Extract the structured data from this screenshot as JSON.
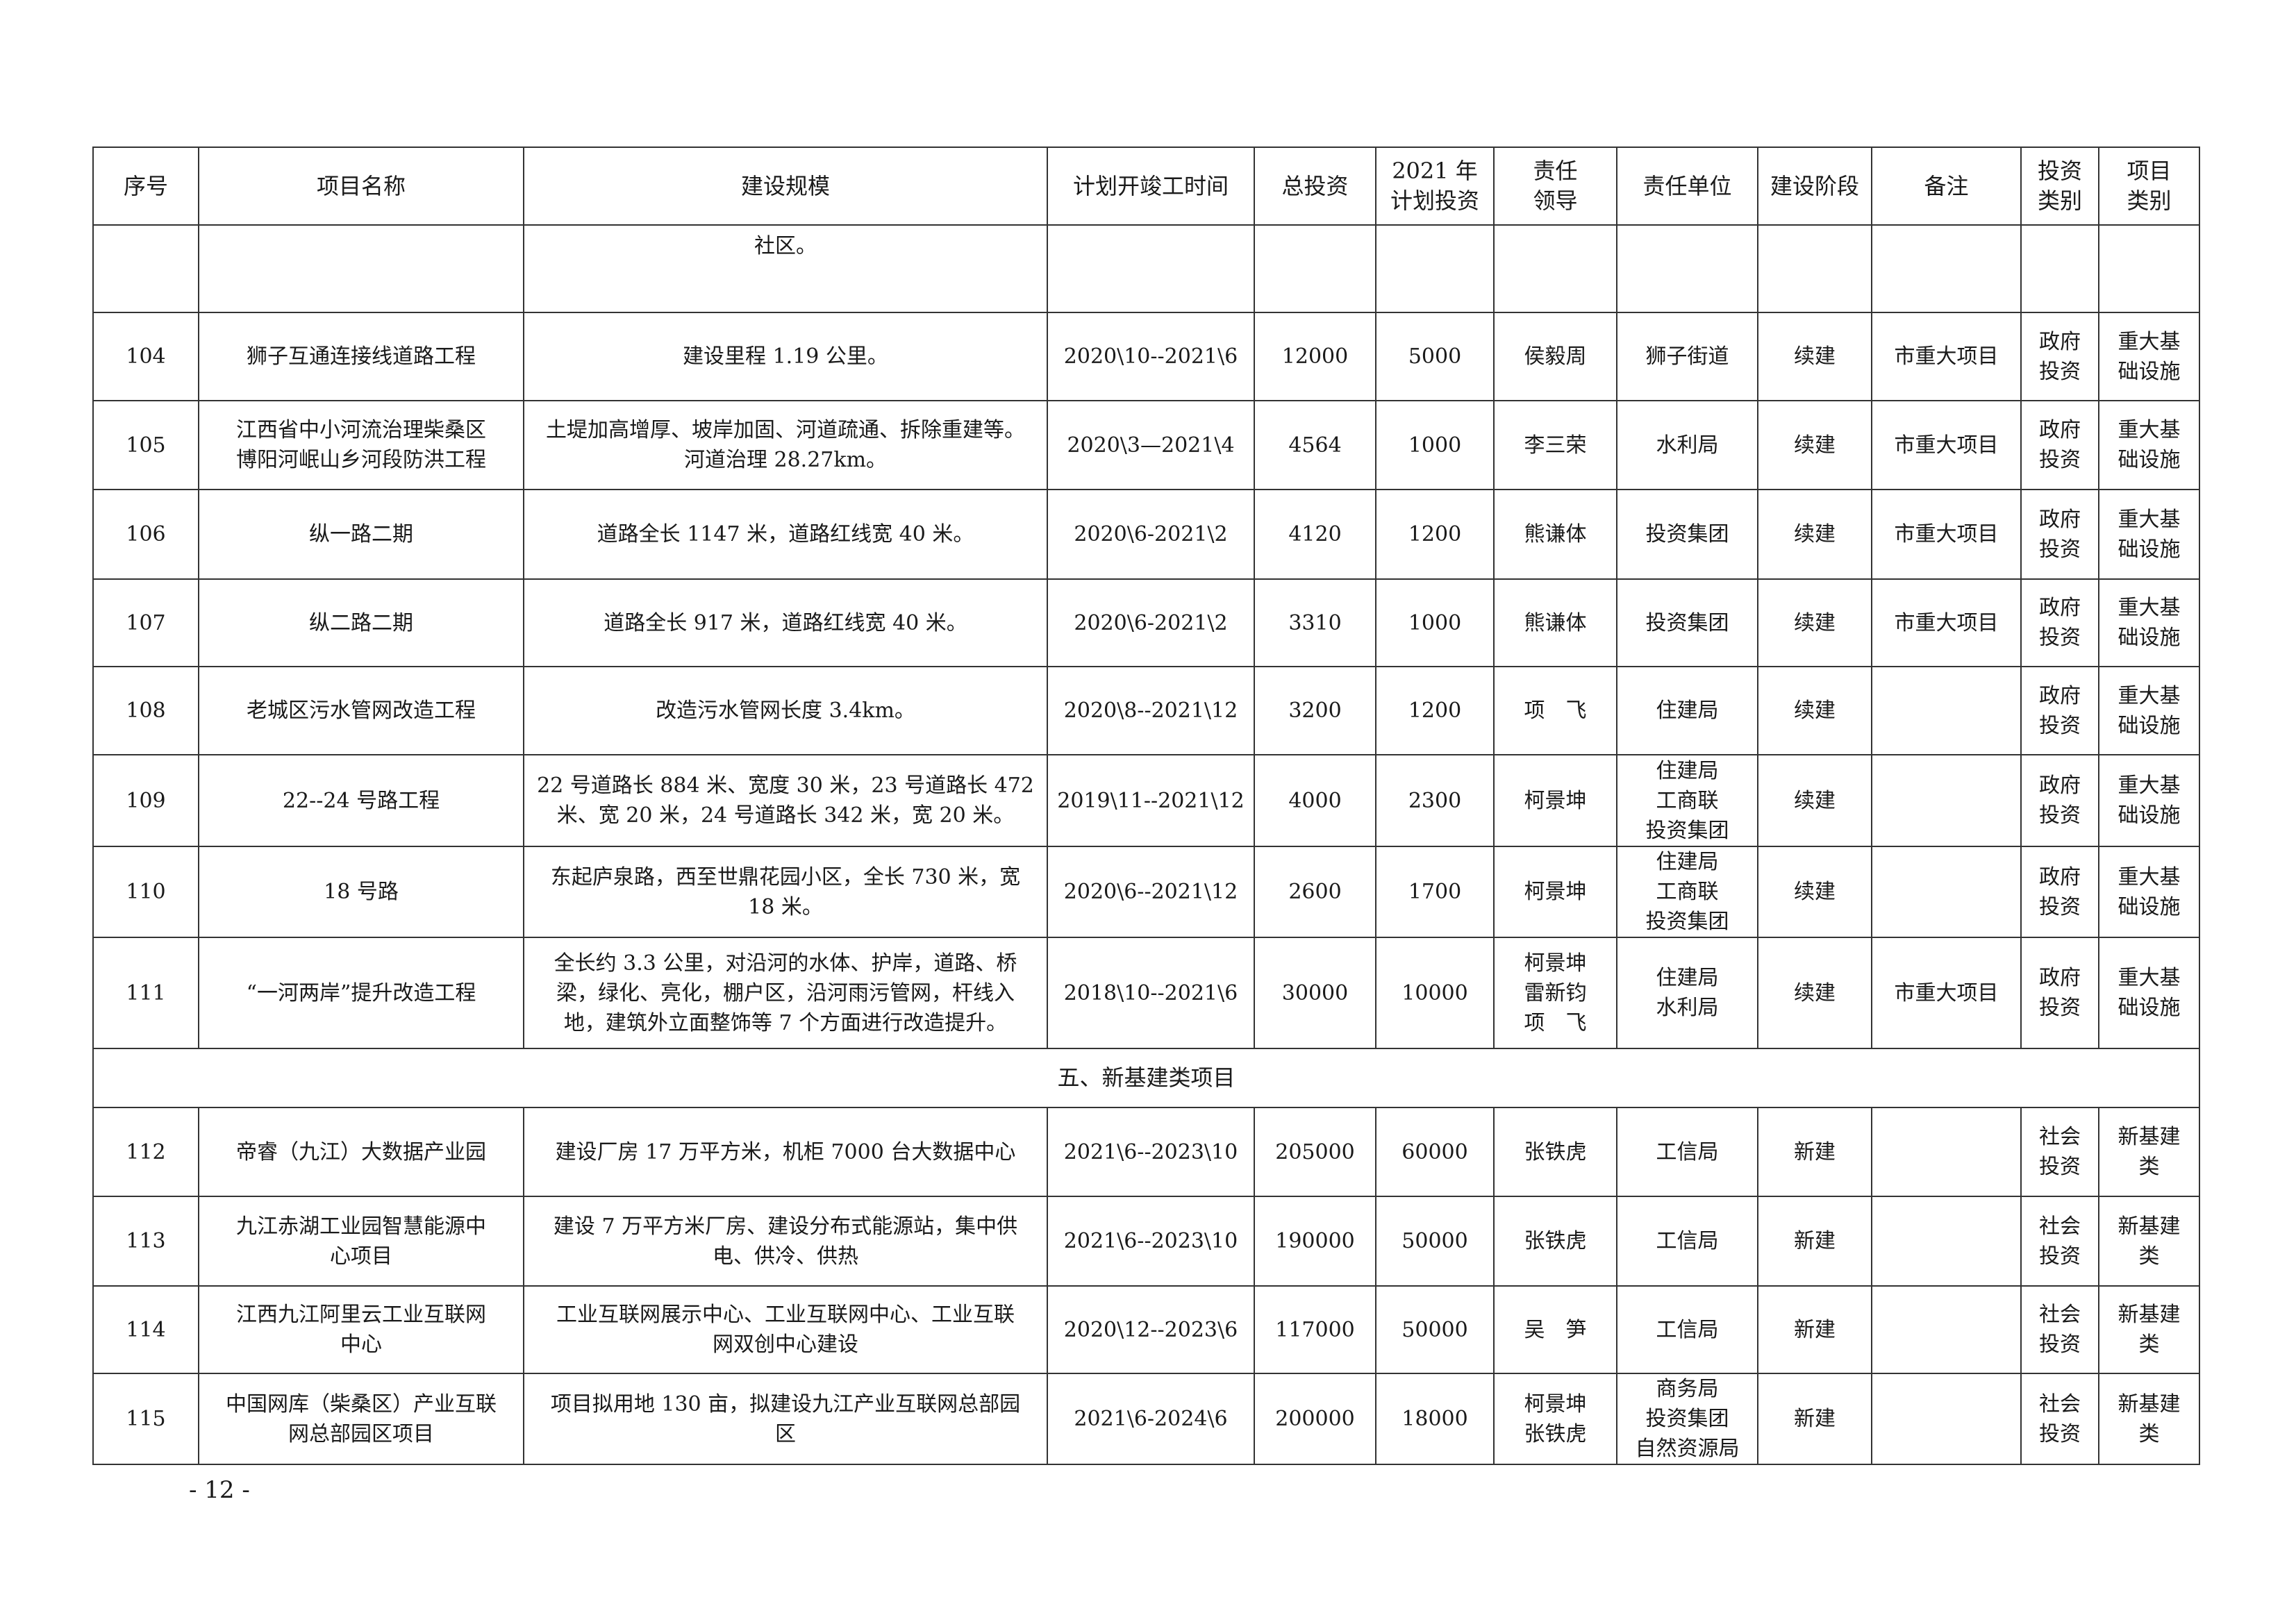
{
  "table": {
    "headers": [
      "序号",
      "项目名称",
      "建设规模",
      "计划开竣工时间",
      "总投资",
      "2021 年\n计划投资",
      "责任\n领导",
      "责任单位",
      "建设阶段",
      "备注",
      "投资\n类别",
      "项目\n类别"
    ],
    "continuation_row": {
      "scale": "社区。"
    },
    "rows_part1": [
      [
        "104",
        "狮子互通连接线道路工程",
        "建设里程 1.19 公里。",
        "2020\\10--2021\\6",
        "12000",
        "5000",
        "侯毅周",
        "狮子街道",
        "续建",
        "市重大项目",
        "政府\n投资",
        "重大基\n础设施"
      ],
      [
        "105",
        "江西省中小河流治理柴桑区\n博阳河岷山乡河段防洪工程",
        "土堤加高增厚、坡岸加固、河道疏通、拆除重建等。\n河道治理 28.27km。",
        "2020\\3—2021\\4",
        "4564",
        "1000",
        "李三荣",
        "水利局",
        "续建",
        "市重大项目",
        "政府\n投资",
        "重大基\n础设施"
      ],
      [
        "106",
        "纵一路二期",
        "道路全长 1147 米，道路红线宽 40 米。",
        "2020\\6-2021\\2",
        "4120",
        "1200",
        "熊谦体",
        "投资集团",
        "续建",
        "市重大项目",
        "政府\n投资",
        "重大基\n础设施"
      ],
      [
        "107",
        "纵二路二期",
        "道路全长 917 米，道路红线宽 40 米。",
        "2020\\6-2021\\2",
        "3310",
        "1000",
        "熊谦体",
        "投资集团",
        "续建",
        "市重大项目",
        "政府\n投资",
        "重大基\n础设施"
      ],
      [
        "108",
        "老城区污水管网改造工程",
        "改造污水管网长度 3.4km。",
        "2020\\8--2021\\12",
        "3200",
        "1200",
        "项　飞",
        "住建局",
        "续建",
        "",
        "政府\n投资",
        "重大基\n础设施"
      ],
      [
        "109",
        "22--24 号路工程",
        "22 号道路长 884 米、宽度 30 米，23 号道路长 472\n米、宽 20 米，24 号道路长 342 米，宽 20 米。",
        "2019\\11--2021\\12",
        "4000",
        "2300",
        "柯景坤",
        "住建局\n工商联\n投资集团",
        "续建",
        "",
        "政府\n投资",
        "重大基\n础设施"
      ],
      [
        "110",
        "18 号路",
        "东起庐泉路，西至世鼎花园小区，全长 730 米，宽\n18 米。",
        "2020\\6--2021\\12",
        "2600",
        "1700",
        "柯景坤",
        "住建局\n工商联\n投资集团",
        "续建",
        "",
        "政府\n投资",
        "重大基\n础设施"
      ],
      [
        "111",
        "“一河两岸”提升改造工程",
        "全长约 3.3 公里，对沿河的水体、护岸，道路、桥\n梁，绿化、亮化，棚户区，沿河雨污管网，杆线入\n地，建筑外立面整饰等 7 个方面进行改造提升。",
        "2018\\10--2021\\6",
        "30000",
        "10000",
        "柯景坤\n雷新钧\n项　飞",
        "住建局\n水利局",
        "续建",
        "市重大项目",
        "政府\n投资",
        "重大基\n础设施"
      ]
    ],
    "section_title": "五、新基建类项目",
    "rows_part2": [
      [
        "112",
        "帝睿（九江）大数据产业园",
        "建设厂房 17 万平方米，机柜 7000 台大数据中心",
        "2021\\6--2023\\10",
        "205000",
        "60000",
        "张铁虎",
        "工信局",
        "新建",
        "",
        "社会\n投资",
        "新基建\n类"
      ],
      [
        "113",
        "九江赤湖工业园智慧能源中\n心项目",
        "建设 7 万平方米厂房、建设分布式能源站，集中供\n电、供冷、供热",
        "2021\\6--2023\\10",
        "190000",
        "50000",
        "张铁虎",
        "工信局",
        "新建",
        "",
        "社会\n投资",
        "新基建\n类"
      ],
      [
        "114",
        "江西九江阿里云工业互联网\n中心",
        "工业互联网展示中心、工业互联网中心、工业互联\n网双创中心建设",
        "2020\\12--2023\\6",
        "117000",
        "50000",
        "吴　笋",
        "工信局",
        "新建",
        "",
        "社会\n投资",
        "新基建\n类"
      ],
      [
        "115",
        "中国网库（柴桑区）产业互联\n网总部园区项目",
        "项目拟用地 130 亩，拟建设九江产业互联网总部园\n区",
        "2021\\6-2024\\6",
        "200000",
        "18000",
        "柯景坤\n张铁虎",
        "商务局\n投资集团\n自然资源局",
        "新建",
        "",
        "社会\n投资",
        "新基建\n类"
      ]
    ]
  },
  "footer": {
    "page_number": "- 12 -"
  }
}
